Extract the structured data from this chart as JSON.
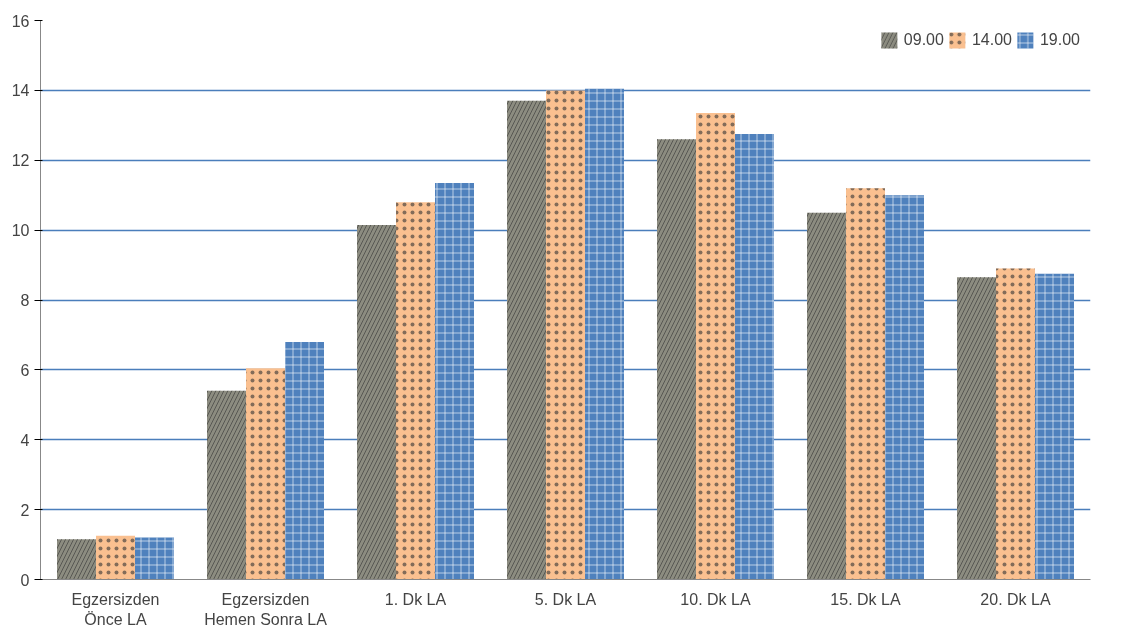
{
  "chart_data": {
    "type": "bar",
    "categories": [
      "Egzersizden\nÖnce LA",
      "Egzersizden\nHemen Sonra LA",
      "1. Dk LA",
      "5. Dk LA",
      "10. Dk LA",
      "15. Dk LA",
      "20. Dk LA"
    ],
    "series": [
      {
        "name": "09.00",
        "color": "#8c8c80",
        "values": [
          1.15,
          5.4,
          10.15,
          13.7,
          12.6,
          10.5,
          8.65
        ]
      },
      {
        "name": "14.00",
        "color": "#fac090",
        "values": [
          1.25,
          6.05,
          10.8,
          14.0,
          13.35,
          11.2,
          8.9
        ]
      },
      {
        "name": "19.00",
        "color": "#4f81bd",
        "values": [
          1.2,
          6.8,
          11.35,
          14.05,
          12.75,
          11.0,
          8.75
        ]
      }
    ],
    "ylim": [
      0,
      16
    ],
    "yticks": [
      0,
      2,
      4,
      6,
      8,
      10,
      12,
      14,
      16
    ],
    "grid": "y",
    "legend": "top right"
  }
}
